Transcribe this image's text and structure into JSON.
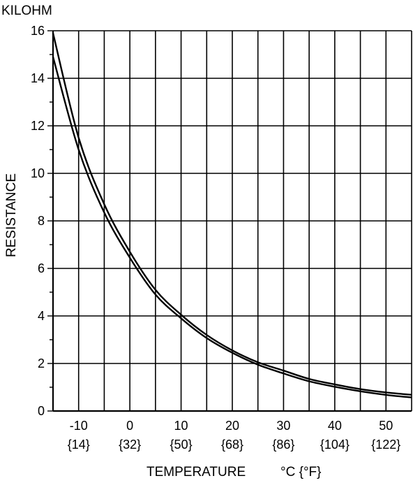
{
  "chart_data": {
    "type": "line",
    "unit_label": "KILOHM",
    "ylabel": "RESISTANCE",
    "xlabel": "TEMPERATURE",
    "xunit": "°C {°F}",
    "xlim": [
      -15,
      55
    ],
    "ylim": [
      0,
      16
    ],
    "x_ticks": [
      -10,
      0,
      10,
      20,
      30,
      40,
      50
    ],
    "x_tick_labels_f": [
      "{14}",
      "{32}",
      "{50}",
      "{68}",
      "{86}",
      "{104}",
      "{122}"
    ],
    "y_ticks": [
      0,
      2,
      4,
      6,
      8,
      10,
      12,
      14,
      16
    ],
    "grid": true,
    "series": [
      {
        "x": [
          -15,
          -10,
          -5,
          0,
          5,
          10,
          15,
          20,
          25,
          30,
          35,
          40,
          45,
          50,
          55
        ],
        "y": [
          15.9,
          11.5,
          8.7,
          6.7,
          5.1,
          4.05,
          3.2,
          2.55,
          2.05,
          1.7,
          1.35,
          1.12,
          0.92,
          0.78,
          0.68
        ]
      },
      {
        "x": [
          -15,
          -10,
          -5,
          0,
          5,
          10,
          15,
          20,
          25,
          30,
          35,
          40,
          45,
          50,
          55
        ],
        "y": [
          14.9,
          11.0,
          8.35,
          6.45,
          4.9,
          3.9,
          3.07,
          2.45,
          1.95,
          1.58,
          1.25,
          1.02,
          0.83,
          0.68,
          0.57
        ]
      }
    ]
  }
}
